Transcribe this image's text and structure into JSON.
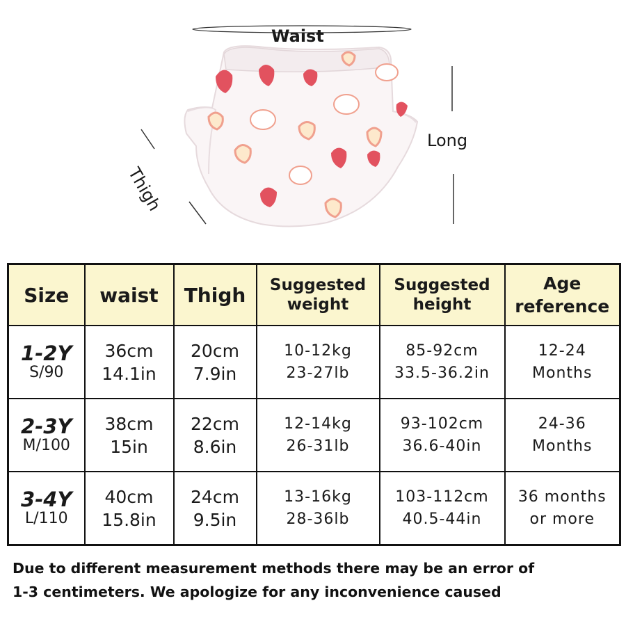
{
  "product": {
    "name": "training pants illustration",
    "labels": {
      "waist": "Waist",
      "long": "Long",
      "thigh": "Thigh"
    },
    "colors": {
      "fabric": "#fbf6f7",
      "strawberry": "#e2525f",
      "outline": "#f0a08e"
    }
  },
  "table": {
    "headers": {
      "size": "Size",
      "waist": "waist",
      "thigh": "Thigh",
      "weight": [
        "Suggested",
        "weight"
      ],
      "height": [
        "Suggested",
        "height"
      ],
      "age": [
        "Age",
        "reference"
      ]
    },
    "header_bg": "#fbf6cf",
    "rows": [
      {
        "size": "1-2Y",
        "size_code": "S/90",
        "waist_cm": "36cm",
        "waist_in": "14.1in",
        "thigh_cm": "20cm",
        "thigh_in": "7.9in",
        "weight_kg": "10-12kg",
        "weight_lb": "23-27lb",
        "height_cm": "85-92cm",
        "height_in": "33.5-36.2in",
        "age_1": "12-24",
        "age_2": "Months"
      },
      {
        "size": "2-3Y",
        "size_code": "M/100",
        "waist_cm": "38cm",
        "waist_in": "15in",
        "thigh_cm": "22cm",
        "thigh_in": "8.6in",
        "weight_kg": "12-14kg",
        "weight_lb": "26-31lb",
        "height_cm": "93-102cm",
        "height_in": "36.6-40in",
        "age_1": "24-36",
        "age_2": "Months"
      },
      {
        "size": "3-4Y",
        "size_code": "L/110",
        "waist_cm": "40cm",
        "waist_in": "15.8in",
        "thigh_cm": "24cm",
        "thigh_in": "9.5in",
        "weight_kg": "13-16kg",
        "weight_lb": "28-36lb",
        "height_cm": "103-112cm",
        "height_in": "40.5-44in",
        "age_1": "36 months",
        "age_2": "or more"
      }
    ]
  },
  "footnote": {
    "line1": "Due to different measurement methods there may be an error of",
    "line2": "1-3 centimeters. We apologize for any inconvenience caused"
  }
}
